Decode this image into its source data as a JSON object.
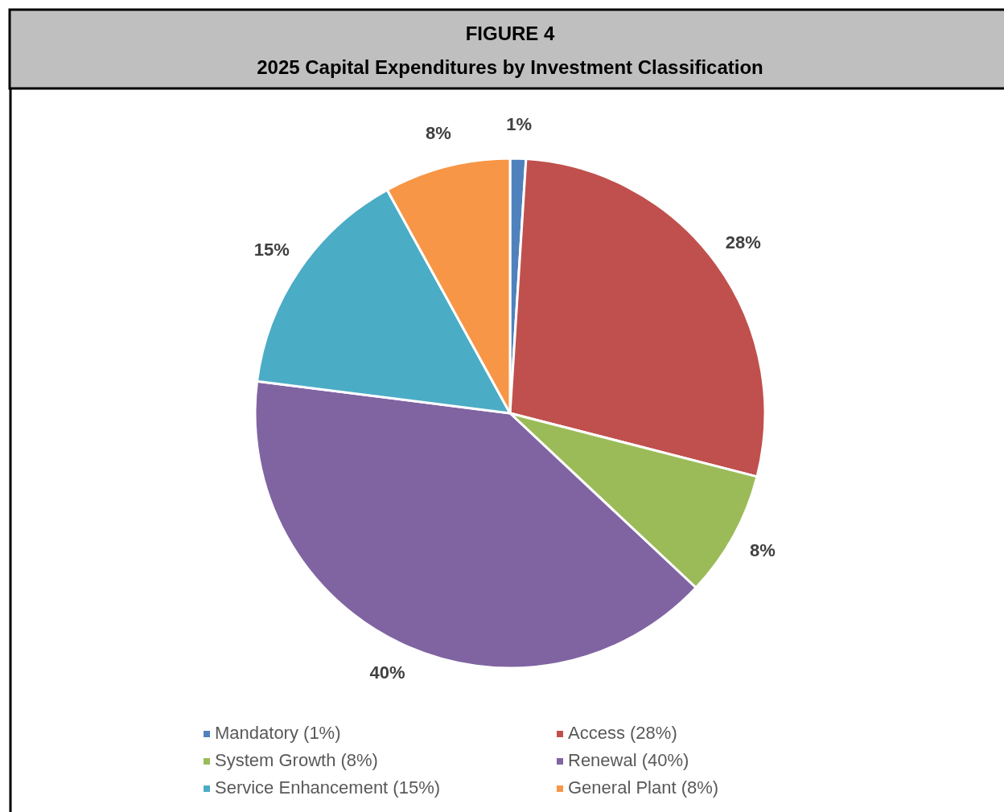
{
  "chart_data": {
    "type": "pie",
    "title": "FIGURE 4",
    "subtitle": "2025 Capital Expenditures by Investment Classification",
    "categories": [
      "Mandatory (1%)",
      "Access (28%)",
      "System Growth (8%)",
      "Renewal (40%)",
      "Service Enhancement (15%)",
      "General Plant (8%)"
    ],
    "values": [
      1,
      28,
      8,
      40,
      15,
      8
    ],
    "colors": [
      "#4f81bd",
      "#c0504d",
      "#9bbb59",
      "#8064a2",
      "#4bacc6",
      "#f79646"
    ],
    "value_labels": [
      "1%",
      "28%",
      "8%",
      "40%",
      "15%",
      "8%"
    ],
    "legend": "bottom"
  }
}
